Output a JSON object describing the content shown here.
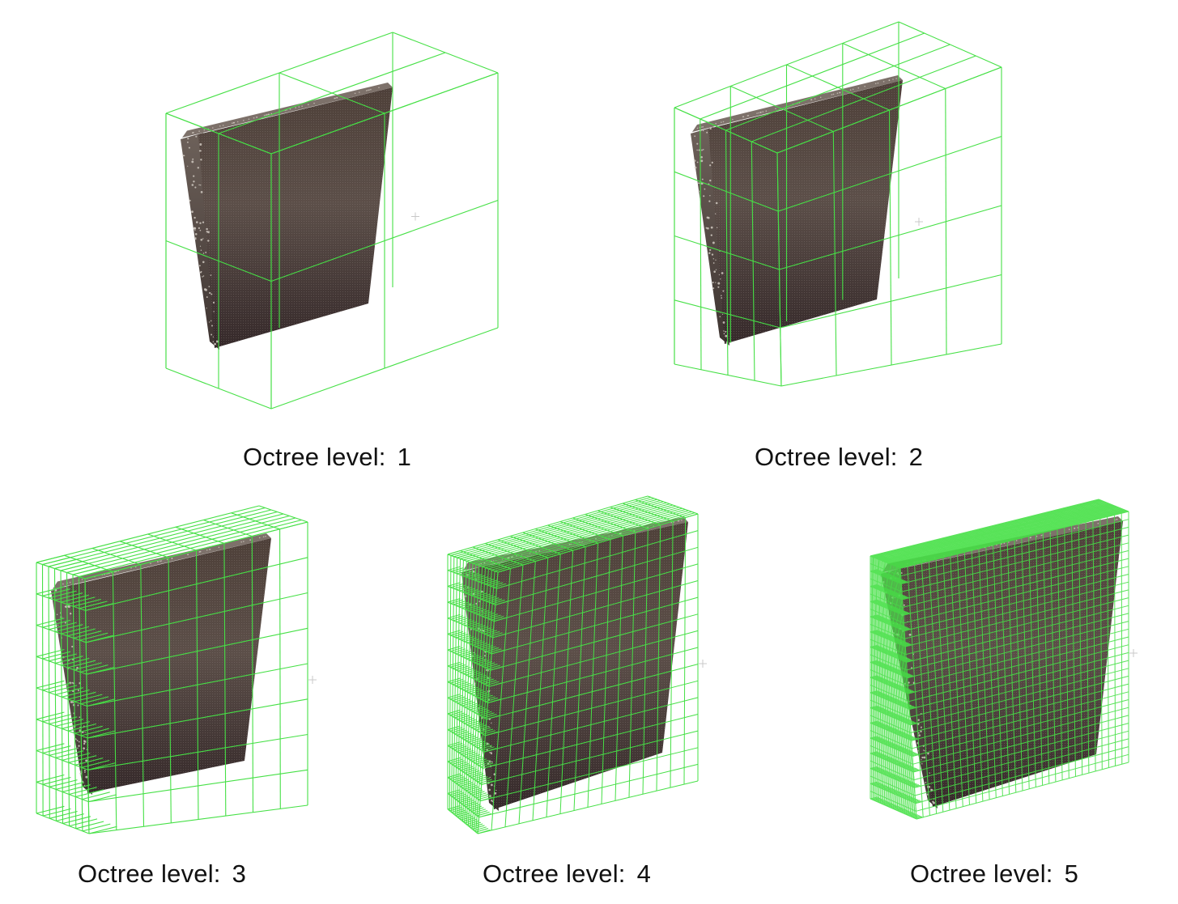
{
  "figure": {
    "colors": {
      "grid": "#46e046",
      "plate_front_top": "#4e4039",
      "plate_front_mid": "#5c4f49",
      "plate_front_bottom": "#35292a",
      "plate_side": "#6d615a",
      "plate_points": "#cfc8c0"
    },
    "panels": [
      {
        "caption_label": "Octree level:",
        "caption_value": "1",
        "level": 1
      },
      {
        "caption_label": "Octree level:",
        "caption_value": "2",
        "level": 2
      },
      {
        "caption_label": "Octree level:",
        "caption_value": "3",
        "level": 3
      },
      {
        "caption_label": "Octree level:",
        "caption_value": "4",
        "level": 4
      },
      {
        "caption_label": "Octree level:",
        "caption_value": "5",
        "level": 5
      }
    ]
  }
}
